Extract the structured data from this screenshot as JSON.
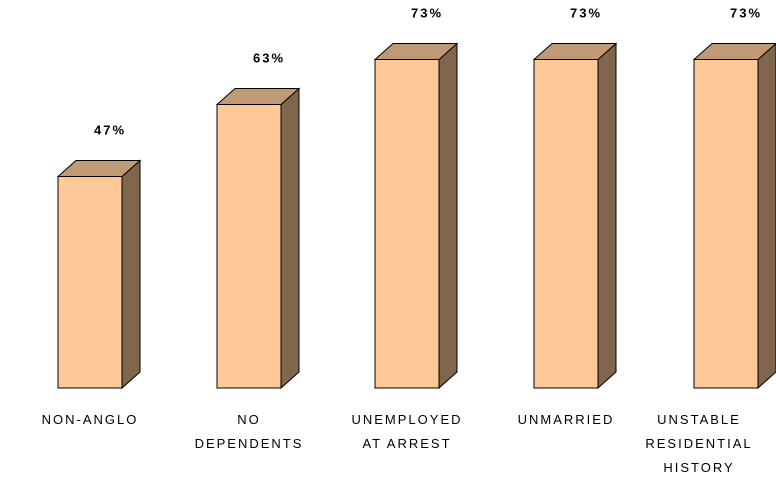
{
  "chart_data": {
    "type": "bar",
    "style": "3d",
    "categories": [
      [
        "NON-ANGLO"
      ],
      [
        "NO",
        "DEPENDENTS"
      ],
      [
        "UNEMPLOYED",
        "AT ARREST"
      ],
      [
        "UNMARRIED"
      ],
      [
        "UNSTABLE",
        "RESIDENTIAL",
        "HISTORY"
      ]
    ],
    "values": [
      47,
      63,
      73,
      73,
      73
    ],
    "value_labels": [
      "47%",
      "63%",
      "73%",
      "73%",
      "73%"
    ],
    "unit": "%",
    "ylim": [
      0,
      100
    ],
    "grid": false,
    "legend": false
  },
  "colors": {
    "bar_front": "#FFC896",
    "bar_top": "#C09A74",
    "bar_side": "#7F664C",
    "outline": "#000000"
  }
}
